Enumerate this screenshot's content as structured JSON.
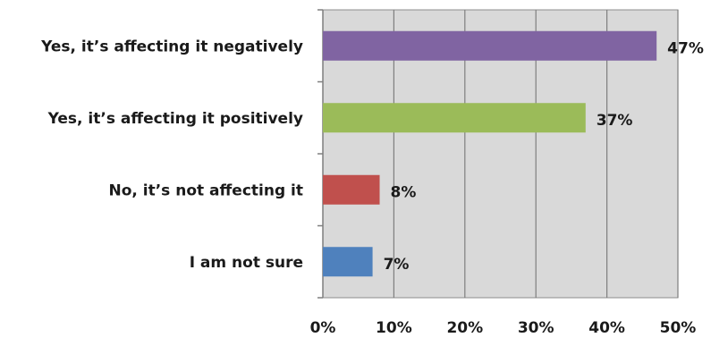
{
  "chart_data": {
    "type": "bar",
    "orientation": "horizontal",
    "categories": [
      "Yes, it’s affecting it negatively",
      "Yes, it’s affecting it positively",
      "No, it’s not affecting it",
      "I am not sure"
    ],
    "values": [
      47,
      37,
      8,
      7
    ],
    "data_labels": [
      "47%",
      "37%",
      "8%",
      "7%"
    ],
    "colors": [
      "#8064a2",
      "#9bbb59",
      "#c0504d",
      "#4f81bd"
    ],
    "xlim": [
      0,
      50
    ],
    "xticks": [
      0,
      10,
      20,
      30,
      40,
      50
    ],
    "xtick_labels": [
      "0%",
      "10%",
      "20%",
      "30%",
      "40%",
      "50%"
    ],
    "grid": "vertical",
    "plot_background": "#d9d9d9",
    "legend": "none"
  }
}
